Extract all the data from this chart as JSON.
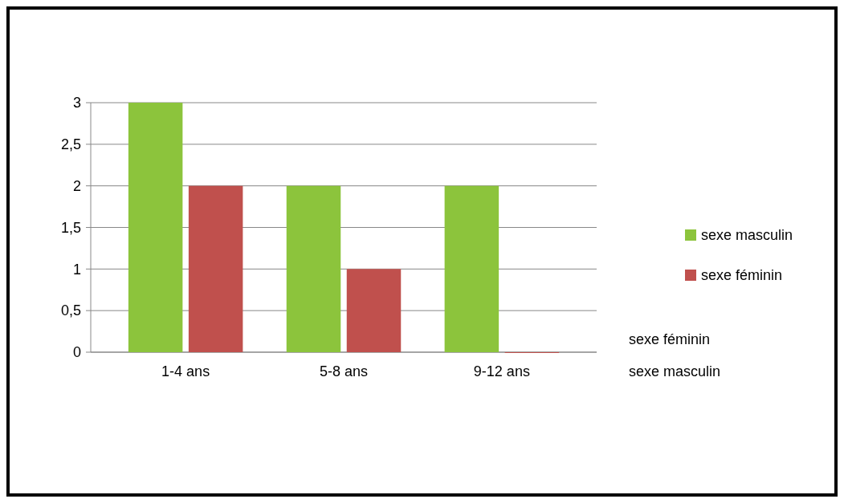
{
  "chart_data": {
    "type": "bar",
    "categories": [
      "1-4 ans",
      "5-8 ans",
      "9-12 ans"
    ],
    "series": [
      {
        "name": "sexe masculin",
        "color": "#8cc43c",
        "values": [
          3,
          2,
          2
        ]
      },
      {
        "name": "sexe féminin",
        "color": "#c0504d",
        "values": [
          2,
          1,
          0
        ]
      }
    ],
    "ylim": [
      0,
      3
    ],
    "yticks": [
      0,
      {
        "value": 0.5,
        "label": "0,5"
      },
      1,
      {
        "value": 1.5,
        "label": "1,5"
      },
      2,
      {
        "value": 2.5,
        "label": "2,5"
      },
      3
    ],
    "grid": "y",
    "legend": "right",
    "annotations": [
      "sexe féminin",
      "sexe masculin"
    ]
  }
}
